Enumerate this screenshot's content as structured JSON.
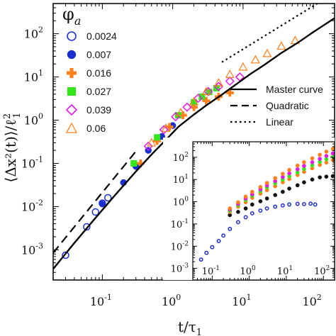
{
  "chart_data": [
    {
      "type": "scatter",
      "x_scale": "log",
      "y_scale": "log",
      "xlim": [
        0.02,
        200
      ],
      "ylim": [
        0.0002,
        500
      ],
      "xlabel": {
        "main": "t/τ",
        "sub": "1"
      },
      "ylabel": {
        "main": "⟨Δx²(t)⟩/ℓ",
        "sup": "2",
        "sub": "1"
      },
      "x_ticks": [
        {
          "value": 0.1,
          "base": "10",
          "exp": "-1"
        },
        {
          "value": 1,
          "base": "10",
          "exp": "0"
        },
        {
          "value": 10,
          "base": "10",
          "exp": "1"
        },
        {
          "value": 100,
          "base": "10",
          "exp": "2"
        }
      ],
      "y_ticks": [
        {
          "value": 0.001,
          "base": "10",
          "exp": "-3"
        },
        {
          "value": 0.01,
          "base": "10",
          "exp": "-2"
        },
        {
          "value": 0.1,
          "base": "10",
          "exp": "-1"
        },
        {
          "value": 1,
          "base": "10",
          "exp": "0"
        },
        {
          "value": 10,
          "base": "10",
          "exp": "1"
        },
        {
          "value": 100,
          "base": "10",
          "exp": "2"
        }
      ],
      "legend_title": {
        "main": "φ",
        "sub": "a"
      },
      "legend_placement": "top-left",
      "lines_legend_placement": "right",
      "series": [
        {
          "name": "0.0024",
          "marker": "open-circle",
          "color": "#1f2fd6",
          "points": [
            [
              0.03,
              0.00075
            ],
            [
              0.06,
              0.0034
            ],
            [
              0.08,
              0.0075
            ],
            [
              0.1,
              0.012
            ],
            [
              0.12,
              0.016
            ]
          ]
        },
        {
          "name": "0.007",
          "marker": "filled-circle",
          "color": "#1a2fd1",
          "points": [
            [
              0.1,
              0.0115
            ],
            [
              0.2,
              0.036
            ],
            [
              0.3,
              0.085
            ],
            [
              0.45,
              0.2
            ],
            [
              0.7,
              0.42
            ],
            [
              1.0,
              0.75
            ]
          ]
        },
        {
          "name": "0.016",
          "marker": "plus",
          "color": "#ff7f1a",
          "points": [
            [
              0.35,
              0.1
            ],
            [
              0.6,
              0.33
            ],
            [
              0.9,
              0.7
            ],
            [
              1.4,
              1.3
            ],
            [
              2.0,
              2.0
            ],
            [
              3.0,
              2.8
            ],
            [
              4.5,
              3.5
            ],
            [
              6.5,
              4.3
            ]
          ]
        },
        {
          "name": "0.027",
          "marker": "filled-square",
          "color": "#33e61a",
          "points": [
            [
              0.28,
              0.1
            ],
            [
              0.6,
              0.4
            ],
            [
              1.2,
              1.3
            ],
            [
              2.0,
              2.6
            ],
            [
              2.6,
              3.5
            ],
            [
              3.3,
              4.5
            ],
            [
              4.2,
              5.5
            ]
          ]
        },
        {
          "name": "0.039",
          "marker": "open-diamond",
          "color": "#e61ae6",
          "points": [
            [
              0.45,
              0.25
            ],
            [
              0.75,
              0.6
            ],
            [
              1.1,
              1.2
            ],
            [
              1.6,
              2.0
            ],
            [
              2.3,
              3.2
            ],
            [
              3.2,
              4.6
            ],
            [
              4.5,
              6.0
            ],
            [
              6.5,
              8.0
            ],
            [
              9.0,
              10.0
            ]
          ]
        },
        {
          "name": "0.06",
          "marker": "open-triangle",
          "color": "#ff7f1a",
          "points": [
            [
              0.5,
              0.3
            ],
            [
              0.8,
              0.65
            ],
            [
              1.3,
              1.5
            ],
            [
              2.0,
              2.7
            ],
            [
              3.0,
              4.6
            ],
            [
              4.5,
              7.3
            ],
            [
              6.5,
              11.5
            ],
            [
              10,
              17
            ],
            [
              15,
              25
            ],
            [
              22,
              35
            ],
            [
              35,
              52
            ],
            [
              55,
              70
            ]
          ]
        }
      ],
      "lines": [
        {
          "name": "Master curve",
          "style": "solid",
          "color": "#000000",
          "points": [
            [
              0.02,
              0.00036
            ],
            [
              0.04,
              0.00144
            ],
            [
              0.08,
              0.0055
            ],
            [
              0.15,
              0.018
            ],
            [
              0.3,
              0.065
            ],
            [
              0.5,
              0.16
            ],
            [
              0.8,
              0.35
            ],
            [
              1.2,
              0.7
            ],
            [
              2,
              1.35
            ],
            [
              3,
              2.2
            ],
            [
              5,
              3.9
            ],
            [
              8,
              6.8
            ],
            [
              13,
              12
            ],
            [
              20,
              19
            ],
            [
              35,
              36
            ],
            [
              60,
              62
            ],
            [
              100,
              110
            ],
            [
              200,
              230
            ]
          ]
        },
        {
          "name": "Quadratic",
          "style": "dashed",
          "color": "#000000",
          "points": [
            [
              0.02,
              0.00085
            ],
            [
              0.3,
              0.19
            ]
          ]
        },
        {
          "name": "Linear",
          "style": "dotted",
          "color": "#000000",
          "points": [
            [
              5,
              22
            ],
            [
              200,
              880
            ]
          ]
        }
      ]
    },
    {
      "type": "scatter",
      "role": "inset",
      "x_scale": "log",
      "y_scale": "log",
      "xlim": [
        0.03,
        200
      ],
      "ylim": [
        0.0003,
        500
      ],
      "x_ticks": [
        {
          "value": 0.1,
          "base": "10",
          "exp": "-1"
        },
        {
          "value": 1,
          "base": "10",
          "exp": "0"
        },
        {
          "value": 10,
          "base": "10",
          "exp": "1"
        },
        {
          "value": 100,
          "base": "10",
          "exp": "2"
        }
      ],
      "y_ticks": [
        {
          "value": 0.001,
          "base": "10",
          "exp": "-3"
        },
        {
          "value": 0.01,
          "base": "10",
          "exp": "-2"
        },
        {
          "value": 0.1,
          "base": "10",
          "exp": "-1"
        },
        {
          "value": 1,
          "base": "10",
          "exp": "0"
        },
        {
          "value": 10,
          "base": "10",
          "exp": "1"
        },
        {
          "value": 100,
          "base": "10",
          "exp": "2"
        }
      ],
      "series": [
        {
          "name": "0.0024",
          "marker": "open-circle",
          "color": "#1f2fd6",
          "points": [
            [
              0.05,
              0.0025
            ],
            [
              0.07,
              0.005
            ],
            [
              0.1,
              0.009
            ],
            [
              0.15,
              0.017
            ],
            [
              0.2,
              0.03
            ],
            [
              0.3,
              0.06
            ],
            [
              0.5,
              0.12
            ],
            [
              0.8,
              0.2
            ],
            [
              1.2,
              0.3
            ],
            [
              2,
              0.4
            ],
            [
              3,
              0.5
            ],
            [
              5,
              0.6
            ],
            [
              8,
              0.68
            ],
            [
              12,
              0.75
            ],
            [
              20,
              0.8
            ],
            [
              30,
              0.78
            ],
            [
              45,
              0.82
            ],
            [
              60,
              0.75
            ]
          ]
        },
        {
          "name": "0.007",
          "marker": "filled-circle",
          "color": "#111111",
          "points": [
            [
              0.3,
              0.25
            ],
            [
              0.5,
              0.35
            ],
            [
              0.8,
              0.5
            ],
            [
              1.2,
              0.75
            ],
            [
              2,
              1.05
            ],
            [
              3,
              1.4
            ],
            [
              5,
              2.0
            ],
            [
              8,
              2.8
            ],
            [
              12,
              3.9
            ],
            [
              20,
              5.5
            ],
            [
              30,
              7.5
            ],
            [
              50,
              10
            ],
            [
              80,
              12.5
            ],
            [
              120,
              13.5
            ],
            [
              180,
              14.2
            ]
          ]
        },
        {
          "name": "0.016",
          "marker": "filled-circle",
          "color": "#ff7f1a",
          "points": [
            [
              0.3,
              0.35
            ],
            [
              0.5,
              0.6
            ],
            [
              0.8,
              0.95
            ],
            [
              1.2,
              1.5
            ],
            [
              2,
              2.3
            ],
            [
              3,
              3.3
            ],
            [
              5,
              5
            ],
            [
              8,
              7.5
            ],
            [
              12,
              10.5
            ],
            [
              20,
              16
            ],
            [
              30,
              22
            ],
            [
              50,
              32
            ],
            [
              80,
              45
            ],
            [
              120,
              58
            ],
            [
              180,
              75
            ]
          ]
        },
        {
          "name": "0.027",
          "marker": "filled-circle",
          "color": "#33e61a",
          "points": [
            [
              0.3,
              0.4
            ],
            [
              0.5,
              0.7
            ],
            [
              0.8,
              1.2
            ],
            [
              1.2,
              1.9
            ],
            [
              2,
              3
            ],
            [
              3,
              4.4
            ],
            [
              5,
              6.8
            ],
            [
              8,
              10
            ],
            [
              12,
              14
            ],
            [
              20,
              21
            ],
            [
              30,
              30
            ],
            [
              50,
              44
            ],
            [
              80,
              62
            ],
            [
              120,
              82
            ],
            [
              180,
              105
            ]
          ]
        },
        {
          "name": "0.039",
          "marker": "filled-circle",
          "color": "#e61ae6",
          "points": [
            [
              0.3,
              0.45
            ],
            [
              0.5,
              0.8
            ],
            [
              0.8,
              1.4
            ],
            [
              1.2,
              2.2
            ],
            [
              2,
              3.6
            ],
            [
              3,
              5.4
            ],
            [
              5,
              8.5
            ],
            [
              8,
              13
            ],
            [
              12,
              19
            ],
            [
              20,
              29
            ],
            [
              30,
              41
            ],
            [
              50,
              60
            ],
            [
              80,
              85
            ],
            [
              120,
              115
            ],
            [
              180,
              150
            ]
          ]
        },
        {
          "name": "0.06",
          "marker": "filled-circle",
          "color": "#ff7f1a",
          "points": [
            [
              0.3,
              0.5
            ],
            [
              0.5,
              0.95
            ],
            [
              0.8,
              1.7
            ],
            [
              1.2,
              2.8
            ],
            [
              2,
              4.6
            ],
            [
              3,
              7
            ],
            [
              5,
              11.5
            ],
            [
              8,
              18
            ],
            [
              12,
              27
            ],
            [
              20,
              42
            ],
            [
              30,
              60
            ],
            [
              50,
              90
            ],
            [
              80,
              130
            ],
            [
              120,
              180
            ],
            [
              180,
              240
            ]
          ]
        }
      ]
    }
  ]
}
